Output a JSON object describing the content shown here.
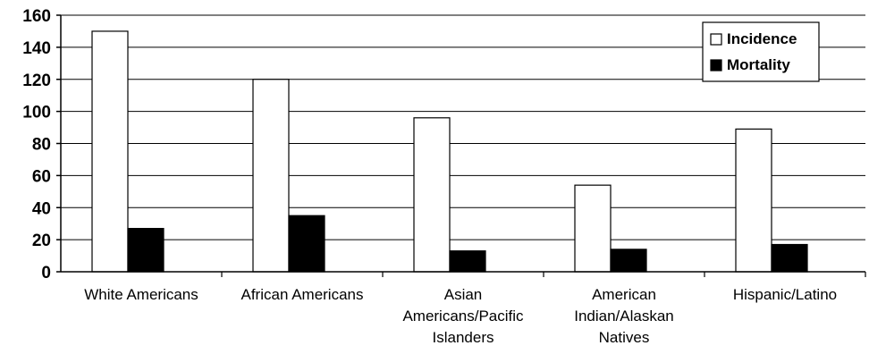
{
  "chart_data": {
    "type": "bar",
    "categories": [
      [
        "White Americans"
      ],
      [
        "African Americans"
      ],
      [
        "Asian",
        "Americans/Pacific",
        "Islanders"
      ],
      [
        "American",
        "Indian/Alaskan",
        "Natives"
      ],
      [
        "Hispanic/Latino"
      ]
    ],
    "series": [
      {
        "name": "Incidence",
        "values": [
          150,
          120,
          96,
          54,
          89
        ],
        "color": "#ffffff"
      },
      {
        "name": "Mortality",
        "values": [
          27,
          35,
          13,
          14,
          17
        ],
        "color": "#000000"
      }
    ],
    "ylim": [
      0,
      160
    ],
    "yticks": [
      0,
      20,
      40,
      60,
      80,
      100,
      120,
      140,
      160
    ],
    "grid": true,
    "legend_position": "top-right"
  }
}
